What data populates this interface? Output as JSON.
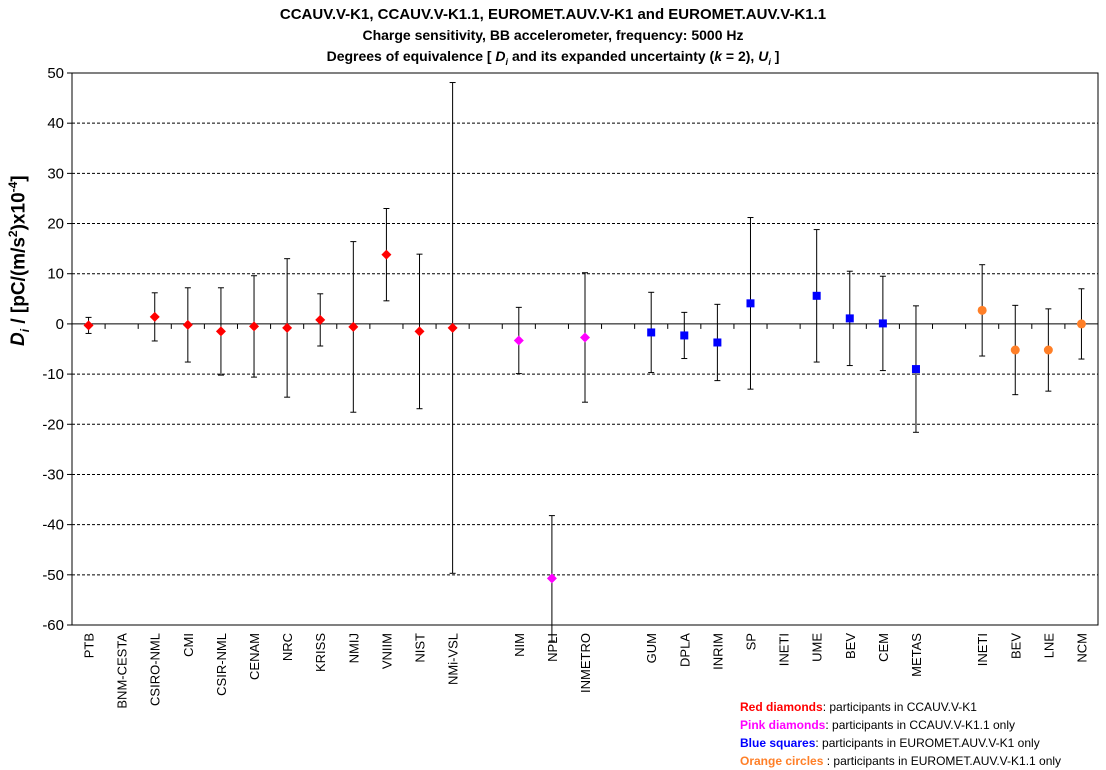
{
  "chart_data": {
    "type": "scatter",
    "title": "CCAUV.V-K1, CCAUV.V-K1.1, EUROMET.AUV.V-K1 and EUROMET.AUV.V-K1.1",
    "subtitle": "Charge sensitivity, BB accelerometer, frequency: 5000 Hz",
    "subtitle2": "Degrees of equivalence [ D_i and its expanded uncertainty (k = 2), U_i ]",
    "ylabel": "D_i / [pC/(m/s^2)x10^-4]",
    "ylim": [
      -60,
      50
    ],
    "yticks": [
      50,
      40,
      30,
      20,
      10,
      0,
      -10,
      -20,
      -30,
      -40,
      -50,
      -60
    ],
    "grid": true,
    "categories": [
      "PTB",
      "BNM-CESTA",
      "CSIRO-NML",
      "CMI",
      "CSIR-NML",
      "CENAM",
      "NRC",
      "KRISS",
      "NMIJ",
      "VNIIM",
      "NIST",
      "NMi-VSL",
      "",
      "NIM",
      "NPLI",
      "INMETRO",
      "",
      "GUM",
      "DPLA",
      "INRIM",
      "SP",
      "INETI",
      "UME",
      "BEV",
      "CEM",
      "METAS",
      "",
      "INETI",
      "BEV",
      "LNE",
      "NCM"
    ],
    "series": [
      {
        "name": "Red diamonds",
        "marker": "diamond",
        "color": "#ff0000",
        "points": [
          {
            "x": "PTB",
            "y": -0.3,
            "u": 1.6
          },
          {
            "x": "CSIRO-NML",
            "y": 1.4,
            "u": 4.8
          },
          {
            "x": "CMI",
            "y": -0.2,
            "u": 7.4
          },
          {
            "x": "CSIR-NML",
            "y": -1.5,
            "u": 8.7
          },
          {
            "x": "CENAM",
            "y": -0.5,
            "u": 10.1
          },
          {
            "x": "NRC",
            "y": -0.8,
            "u": 13.8
          },
          {
            "x": "KRISS",
            "y": 0.8,
            "u": 5.2
          },
          {
            "x": "NMIJ",
            "y": -0.6,
            "u": 17.0
          },
          {
            "x": "VNIIM",
            "y": 13.8,
            "u": 9.2
          },
          {
            "x": "NIST",
            "y": -1.5,
            "u": 15.4
          },
          {
            "x": "NMi-VSL",
            "y": -0.8,
            "u": 48.9
          }
        ]
      },
      {
        "name": "Pink diamonds",
        "marker": "diamond",
        "color": "#ff00ff",
        "points": [
          {
            "x": "NIM",
            "y": -3.3,
            "u": 6.6
          },
          {
            "x": "NPLI",
            "y": -50.7,
            "u": 12.5
          },
          {
            "x": "INMETRO",
            "y": -2.7,
            "u": 12.9
          }
        ]
      },
      {
        "name": "Blue squares",
        "marker": "square",
        "color": "#0000ff",
        "points": [
          {
            "x": "GUM",
            "y": -1.7,
            "u": 8.0
          },
          {
            "x": "DPLA",
            "y": -2.3,
            "u": 4.6
          },
          {
            "x": "INRIM",
            "y": -3.7,
            "u": 7.6
          },
          {
            "x": "SP",
            "y": 4.1,
            "u": 17.1
          },
          {
            "x": "UME",
            "y": 5.6,
            "u": 13.2
          },
          {
            "x": "BEV",
            "y": 1.1,
            "u": 9.4
          },
          {
            "x": "CEM",
            "y": 0.1,
            "u": 9.4
          },
          {
            "x": "METAS",
            "y": -9.0,
            "u": 12.6
          }
        ]
      },
      {
        "name": "Orange circles",
        "marker": "circle",
        "color": "#ff7f27",
        "points": [
          {
            "x": "INETI#2",
            "y": 2.7,
            "u": 9.1
          },
          {
            "x": "BEV#2",
            "y": -5.2,
            "u": 8.9
          },
          {
            "x": "LNE",
            "y": -5.2,
            "u": 8.2
          },
          {
            "x": "NCM",
            "y": 0.0,
            "u": 7.0
          }
        ]
      }
    ]
  },
  "legend": [
    {
      "key": "Red diamonds",
      "text": ": participants in CCAUV.V-K1",
      "color": "#ff0000"
    },
    {
      "key": "Pink diamonds",
      "text": ": participants in CCAUV.V-K1.1 only",
      "color": "#ff00ff"
    },
    {
      "key": "Blue squares",
      "text": ": participants in EUROMET.AUV.V-K1 only",
      "color": "#0000ff"
    },
    {
      "key": "Orange circles",
      "text": " : participants in EUROMET.AUV.V-K1.1 only",
      "color": "#ff7f27"
    }
  ]
}
